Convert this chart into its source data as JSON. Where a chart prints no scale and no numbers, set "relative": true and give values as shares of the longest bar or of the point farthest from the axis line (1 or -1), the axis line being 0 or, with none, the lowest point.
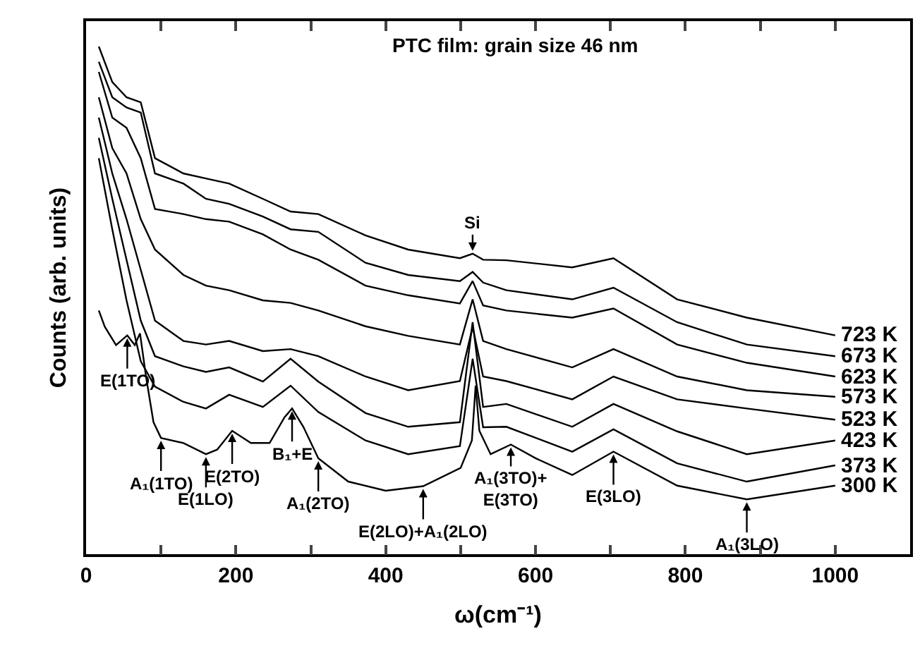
{
  "chart_data": {
    "type": "line",
    "title": "PTC film: grain size 46 nm",
    "xlabel": "ω(cm⁻¹)",
    "ylabel": "Counts (arb. units)",
    "relative": true,
    "legend": false,
    "grid": false,
    "marker": "none",
    "line_style": "solid",
    "xlim": [
      0,
      1100
    ],
    "xticks": [
      0,
      {
        "value": 100,
        "label": null
      },
      200,
      {
        "value": 300,
        "label": null
      },
      400,
      {
        "value": 500,
        "label": null
      },
      600,
      {
        "value": 700,
        "label": null
      },
      800,
      {
        "value": 900,
        "label": null
      },
      1000
    ],
    "x": [
      17,
      35,
      54,
      73,
      92,
      130,
      160,
      191,
      236,
      273,
      310,
      373,
      430,
      499,
      516,
      530,
      561,
      649,
      704,
      789,
      882,
      1000
    ],
    "series": [
      {
        "name": "723 K",
        "color": "#000000",
        "values": [
          1.0,
          0.93,
          0.9,
          0.89,
          0.78,
          0.75,
          0.74,
          0.73,
          0.7,
          0.675,
          0.67,
          0.628,
          0.6,
          0.583,
          0.592,
          0.58,
          0.579,
          0.565,
          0.583,
          0.502,
          0.466,
          0.431
        ]
      },
      {
        "name": "673 K",
        "color": "#000000",
        "values": [
          0.97,
          0.9,
          0.88,
          0.87,
          0.75,
          0.73,
          0.7,
          0.69,
          0.665,
          0.64,
          0.635,
          0.574,
          0.55,
          0.538,
          0.556,
          0.535,
          0.52,
          0.502,
          0.525,
          0.457,
          0.413,
          0.39
        ]
      },
      {
        "name": "623 K",
        "color": "#000000",
        "values": [
          0.95,
          0.86,
          0.84,
          0.78,
          0.68,
          0.67,
          0.66,
          0.655,
          0.63,
          0.6,
          0.58,
          0.529,
          0.51,
          0.494,
          0.538,
          0.49,
          0.48,
          0.466,
          0.484,
          0.413,
          0.377,
          0.35
        ]
      },
      {
        "name": "573 K",
        "color": "#000000",
        "values": [
          0.9,
          0.8,
          0.75,
          0.66,
          0.6,
          0.55,
          0.529,
          0.52,
          0.5,
          0.495,
          0.48,
          0.449,
          0.43,
          0.413,
          0.502,
          0.42,
          0.404,
          0.368,
          0.404,
          0.35,
          0.323,
          0.31
        ]
      },
      {
        "name": "523 K",
        "color": "#000000",
        "values": [
          0.86,
          0.75,
          0.66,
          0.56,
          0.46,
          0.42,
          0.413,
          0.42,
          0.4,
          0.404,
          0.39,
          0.35,
          0.323,
          0.341,
          0.448,
          0.35,
          0.341,
          0.305,
          0.35,
          0.305,
          0.287,
          0.265
        ]
      },
      {
        "name": "423 K",
        "color": "#000000",
        "values": [
          0.82,
          0.7,
          0.58,
          0.46,
          0.39,
          0.37,
          0.359,
          0.368,
          0.34,
          0.385,
          0.34,
          0.278,
          0.251,
          0.26,
          0.457,
          0.29,
          0.296,
          0.251,
          0.296,
          0.242,
          0.197,
          0.224
        ]
      },
      {
        "name": "373 K",
        "color": "#000000",
        "values": [
          0.78,
          0.64,
          0.5,
          0.38,
          0.33,
          0.3,
          0.287,
          0.314,
          0.29,
          0.332,
          0.28,
          0.224,
          0.197,
          0.213,
          0.385,
          0.25,
          0.251,
          0.202,
          0.246,
          0.179,
          0.143,
          0.175
        ]
      },
      {
        "name": "300 K",
        "color": "#000000",
        "x": [
          17,
          25,
          40,
          55,
          65,
          72,
          80,
          90,
          100,
          130,
          160,
          175,
          195,
          220,
          245,
          265,
          275,
          290,
          310,
          350,
          400,
          450,
          500,
          515,
          520,
          525,
          540,
          567,
          600,
          649,
          704,
          789,
          882,
          1000
        ],
        "values": [
          0.48,
          0.448,
          0.412,
          0.431,
          0.412,
          0.435,
          0.35,
          0.26,
          0.229,
          0.219,
          0.197,
          0.206,
          0.243,
          0.219,
          0.219,
          0.27,
          0.287,
          0.251,
          0.189,
          0.143,
          0.125,
          0.134,
          0.17,
          0.224,
          0.332,
          0.243,
          0.197,
          0.216,
          0.189,
          0.156,
          0.202,
          0.135,
          0.108,
          0.135
        ]
      }
    ],
    "annotations": [
      {
        "text": "E(1TO)",
        "x": 55,
        "y": 0.431
      },
      {
        "text": "A₁(1TO)",
        "x": 100,
        "y": 0.229
      },
      {
        "text": "E(1LO)",
        "x": 160,
        "y": 0.197
      },
      {
        "text": "E(2TO)",
        "x": 195,
        "y": 0.243
      },
      {
        "text": "B₁+E",
        "x": 275,
        "y": 0.287
      },
      {
        "text": "A₁(2TO)",
        "x": 310,
        "y": 0.189
      },
      {
        "text": "E(2LO)+A₁(2LO)",
        "x": 450,
        "y": 0.134
      },
      {
        "text": "Si",
        "x": 516,
        "y": 0.592
      },
      {
        "text": "A₁(3TO)+\nE(3TO)",
        "x": 567,
        "y": 0.216
      },
      {
        "text": "E(3LO)",
        "x": 704,
        "y": 0.202
      },
      {
        "text": "A₁(3LO)",
        "x": 882,
        "y": 0.108
      }
    ]
  }
}
